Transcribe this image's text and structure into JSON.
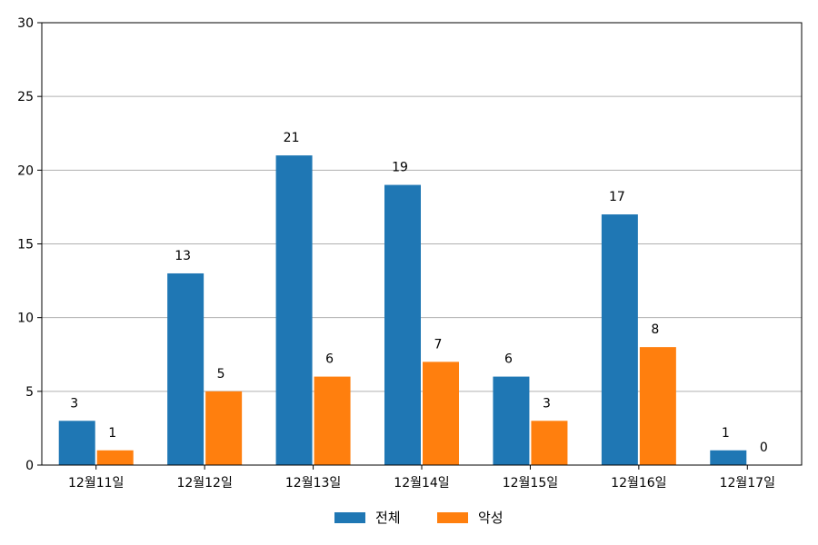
{
  "chart_data": {
    "type": "bar",
    "categories": [
      "12월11일",
      "12월12일",
      "12월13일",
      "12월14일",
      "12월15일",
      "12월16일",
      "12월17일"
    ],
    "series": [
      {
        "name": "전체",
        "values": [
          3,
          13,
          21,
          19,
          6,
          17,
          1
        ],
        "color": "#1f77b4"
      },
      {
        "name": "악성",
        "values": [
          1,
          5,
          6,
          7,
          3,
          8,
          0
        ],
        "color": "#ff7f0e"
      }
    ],
    "ylim": [
      0,
      30
    ],
    "yticks": [
      0,
      5,
      10,
      15,
      20,
      25,
      30
    ],
    "grid": "y",
    "legend": "bottom-center"
  }
}
